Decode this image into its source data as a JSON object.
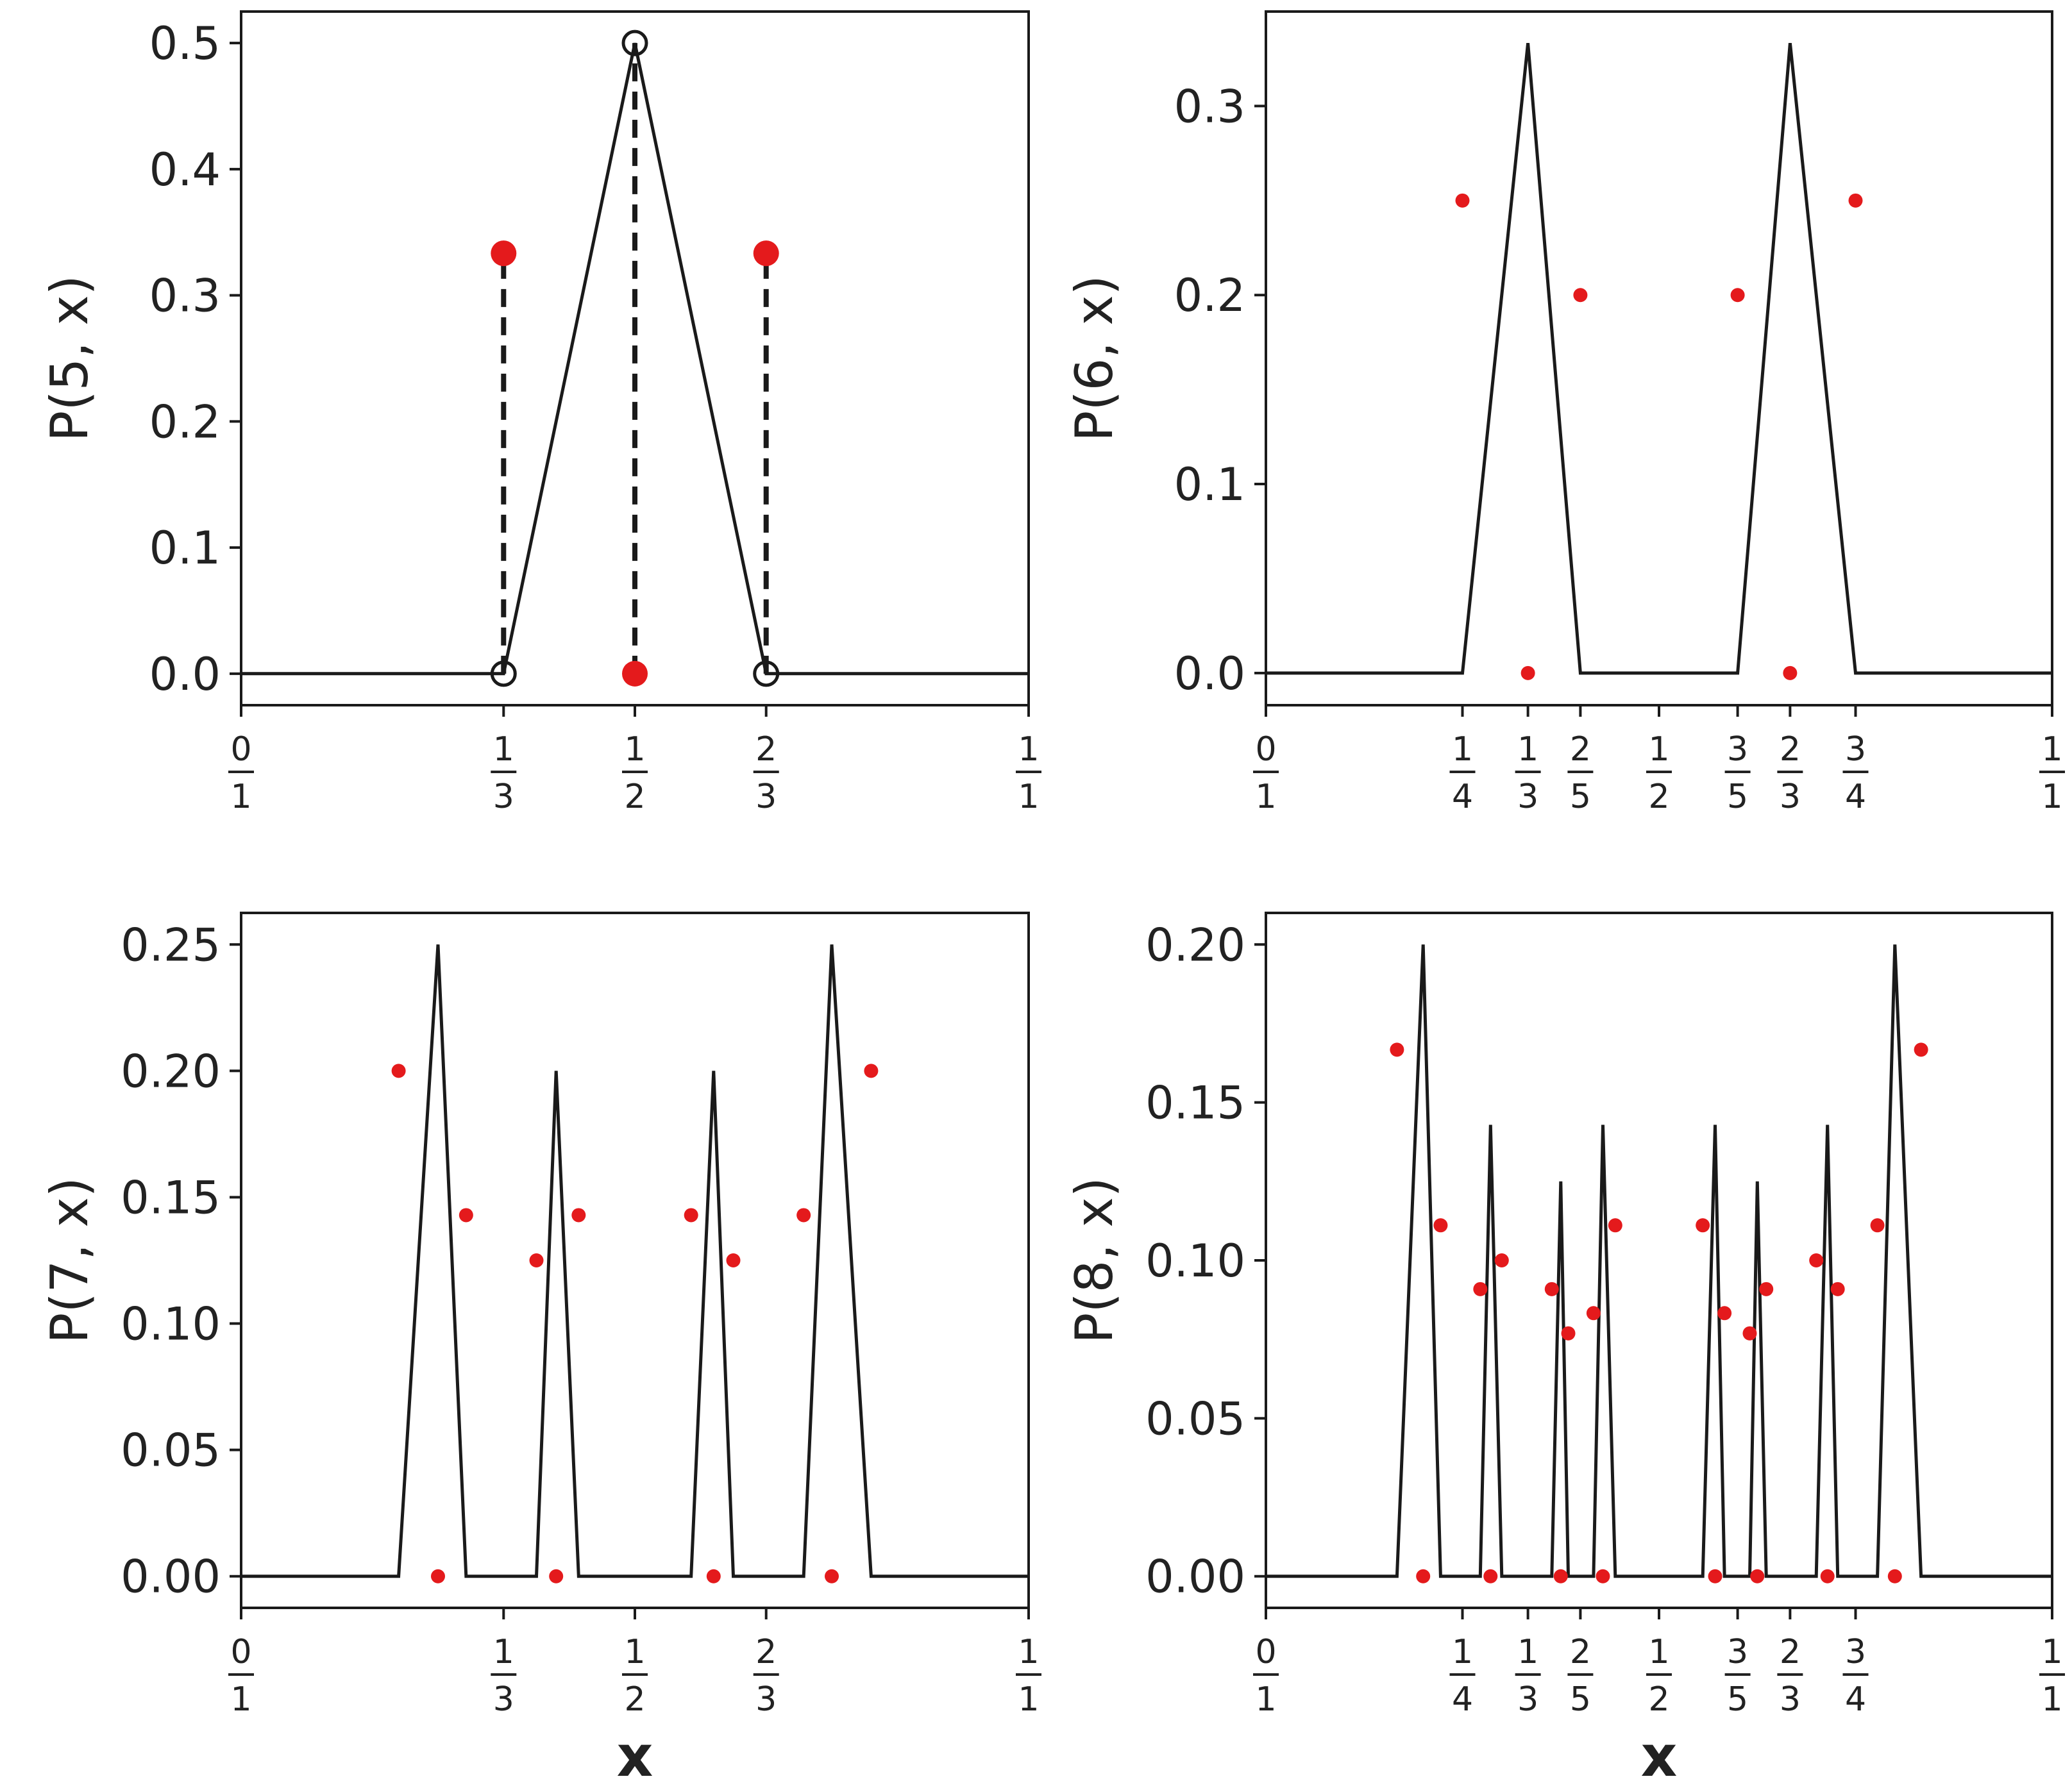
{
  "colors": {
    "line": "#1a1a1a",
    "marker": "#e41a1c",
    "axes": "#1a1a1a"
  },
  "chart_data": [
    {
      "type": "line",
      "ylabel": "P(5, x)",
      "xlabel": "",
      "xlim": [
        0,
        1
      ],
      "ylim": [
        -0.025,
        0.525
      ],
      "yticks": [
        0.0,
        0.1,
        0.2,
        0.3,
        0.4,
        0.5
      ],
      "ytick_labels": [
        "0.0",
        "0.1",
        "0.2",
        "0.3",
        "0.4",
        "0.5"
      ],
      "xticks": [
        {
          "value": 0,
          "num": "0",
          "den": "1"
        },
        {
          "value": 0.3333,
          "num": "1",
          "den": "3"
        },
        {
          "value": 0.5,
          "num": "1",
          "den": "2"
        },
        {
          "value": 0.6667,
          "num": "2",
          "den": "3"
        },
        {
          "value": 1,
          "num": "1",
          "den": "1"
        }
      ],
      "line": {
        "x": [
          0,
          0.3333,
          0.5,
          0.6667,
          1
        ],
        "y": [
          0,
          0,
          0.5,
          0,
          0
        ]
      },
      "open_markers": {
        "x": [
          0.3333,
          0.5,
          0.6667
        ],
        "y": [
          0,
          0.5,
          0
        ]
      },
      "points": {
        "x": [
          0.3333,
          0.5,
          0.6667
        ],
        "y": [
          0.3333,
          0,
          0.3333
        ]
      },
      "point_size": "large",
      "dashed_stems": [
        {
          "x": 0.3333,
          "y0": 0,
          "y1": 0.3333
        },
        {
          "x": 0.5,
          "y0": 0,
          "y1": 0.5
        },
        {
          "x": 0.6667,
          "y0": 0,
          "y1": 0.3333
        }
      ]
    },
    {
      "type": "line",
      "ylabel": "P(6, x)",
      "xlabel": "",
      "xlim": [
        0,
        1
      ],
      "ylim": [
        -0.017,
        0.35
      ],
      "yticks": [
        0.0,
        0.1,
        0.2,
        0.3
      ],
      "ytick_labels": [
        "0.0",
        "0.1",
        "0.2",
        "0.3"
      ],
      "xticks": [
        {
          "value": 0,
          "num": "0",
          "den": "1"
        },
        {
          "value": 0.25,
          "num": "1",
          "den": "4"
        },
        {
          "value": 0.3333,
          "num": "1",
          "den": "3"
        },
        {
          "value": 0.4,
          "num": "2",
          "den": "5"
        },
        {
          "value": 0.5,
          "num": "1",
          "den": "2"
        },
        {
          "value": 0.6,
          "num": "3",
          "den": "5"
        },
        {
          "value": 0.6667,
          "num": "2",
          "den": "3"
        },
        {
          "value": 0.75,
          "num": "3",
          "den": "4"
        },
        {
          "value": 1,
          "num": "1",
          "den": "1"
        }
      ],
      "line": {
        "x": [
          0,
          0.25,
          0.3333,
          0.4,
          0.6,
          0.6667,
          0.75,
          1
        ],
        "y": [
          0,
          0,
          0.3333,
          0,
          0,
          0.3333,
          0,
          0
        ]
      },
      "points": {
        "x": [
          0.25,
          0.3333,
          0.4,
          0.6,
          0.6667,
          0.75
        ],
        "y": [
          0.25,
          0,
          0.2,
          0.2,
          0,
          0.25
        ]
      },
      "point_size": "small"
    },
    {
      "type": "line",
      "ylabel": "P(7, x)",
      "xlabel": "x",
      "xlim": [
        0,
        1
      ],
      "ylim": [
        -0.0125,
        0.2625
      ],
      "yticks": [
        0.0,
        0.05,
        0.1,
        0.15,
        0.2,
        0.25
      ],
      "ytick_labels": [
        "0.00",
        "0.05",
        "0.10",
        "0.15",
        "0.20",
        "0.25"
      ],
      "xticks": [
        {
          "value": 0,
          "num": "0",
          "den": "1"
        },
        {
          "value": 0.3333,
          "num": "1",
          "den": "3"
        },
        {
          "value": 0.5,
          "num": "1",
          "den": "2"
        },
        {
          "value": 0.6667,
          "num": "2",
          "den": "3"
        },
        {
          "value": 1,
          "num": "1",
          "den": "1"
        }
      ],
      "line": {
        "x": [
          0,
          0.2,
          0.25,
          0.2857,
          0.375,
          0.4,
          0.4286,
          0.5714,
          0.6,
          0.625,
          0.7143,
          0.75,
          0.8,
          1
        ],
        "y": [
          0,
          0,
          0.25,
          0,
          0,
          0.2,
          0,
          0,
          0.2,
          0,
          0,
          0.25,
          0,
          0
        ]
      },
      "points": {
        "x": [
          0.2,
          0.25,
          0.2857,
          0.375,
          0.4,
          0.4286,
          0.5714,
          0.6,
          0.625,
          0.7143,
          0.75,
          0.8
        ],
        "y": [
          0.2,
          0,
          0.1429,
          0.125,
          0,
          0.1429,
          0.1429,
          0,
          0.125,
          0.1429,
          0,
          0.2
        ]
      },
      "point_size": "small"
    },
    {
      "type": "line",
      "ylabel": "P(8, x)",
      "xlabel": "x",
      "xlim": [
        0,
        1
      ],
      "ylim": [
        -0.01,
        0.21
      ],
      "yticks": [
        0.0,
        0.05,
        0.1,
        0.15,
        0.2
      ],
      "ytick_labels": [
        "0.00",
        "0.05",
        "0.10",
        "0.15",
        "0.20"
      ],
      "xticks": [
        {
          "value": 0,
          "num": "0",
          "den": "1"
        },
        {
          "value": 0.25,
          "num": "1",
          "den": "4"
        },
        {
          "value": 0.3333,
          "num": "1",
          "den": "3"
        },
        {
          "value": 0.4,
          "num": "2",
          "den": "5"
        },
        {
          "value": 0.5,
          "num": "1",
          "den": "2"
        },
        {
          "value": 0.6,
          "num": "3",
          "den": "5"
        },
        {
          "value": 0.6667,
          "num": "2",
          "den": "3"
        },
        {
          "value": 0.75,
          "num": "3",
          "den": "4"
        },
        {
          "value": 1,
          "num": "1",
          "den": "1"
        }
      ],
      "line": {
        "x": [
          0,
          0.1667,
          0.2,
          0.2222,
          0.2727,
          0.2857,
          0.3,
          0.3636,
          0.375,
          0.3846,
          0.4167,
          0.4286,
          0.4444,
          0.5556,
          0.5714,
          0.5833,
          0.6154,
          0.625,
          0.6364,
          0.7,
          0.7143,
          0.7273,
          0.7778,
          0.8,
          0.8333,
          1
        ],
        "y": [
          0,
          0,
          0.2,
          0,
          0,
          0.1429,
          0,
          0,
          0.125,
          0,
          0,
          0.1429,
          0,
          0,
          0.1429,
          0,
          0,
          0.125,
          0,
          0,
          0.1429,
          0,
          0,
          0.2,
          0,
          0
        ]
      },
      "points": {
        "x": [
          0.1667,
          0.2,
          0.2222,
          0.2727,
          0.2857,
          0.3,
          0.3636,
          0.375,
          0.3846,
          0.4167,
          0.4286,
          0.4444,
          0.5556,
          0.5714,
          0.5833,
          0.6154,
          0.625,
          0.6364,
          0.7,
          0.7143,
          0.7273,
          0.7778,
          0.8,
          0.8333
        ],
        "y": [
          0.1667,
          0,
          0.1111,
          0.0909,
          0,
          0.1,
          0.0909,
          0,
          0.0769,
          0.0833,
          0,
          0.1111,
          0.1111,
          0,
          0.0833,
          0.0769,
          0,
          0.0909,
          0.1,
          0,
          0.0909,
          0.1111,
          0,
          0.1667
        ]
      },
      "point_size": "small"
    }
  ]
}
